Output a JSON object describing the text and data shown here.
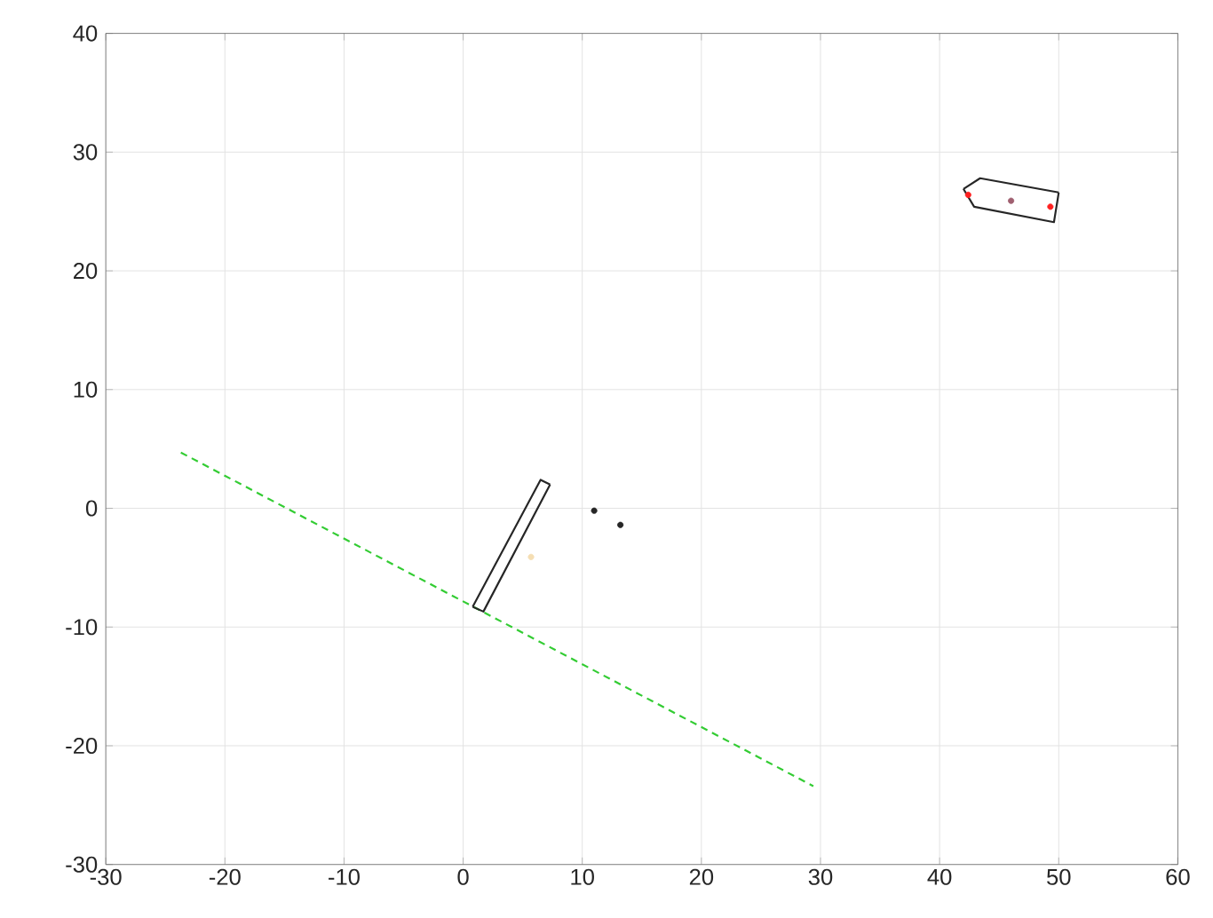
{
  "chart_data": {
    "type": "line",
    "xlim": [
      -30,
      60
    ],
    "ylim": [
      -30,
      40
    ],
    "xticks": [
      -30,
      -20,
      -10,
      0,
      10,
      20,
      30,
      40,
      50,
      60
    ],
    "yticks": [
      -30,
      -20,
      -10,
      0,
      10,
      20,
      30,
      40
    ],
    "grid": true,
    "series": [
      {
        "color": "#33cc33",
        "line_style": "dashed",
        "x": [
          -23.7,
          29.4
        ],
        "values": [
          4.7,
          -23.4
        ]
      },
      {
        "color": "#262626",
        "line_style": "solid",
        "x": [
          0.8,
          6.5,
          7.3
        ],
        "values": [
          -8.3,
          2.4,
          2.0
        ]
      },
      {
        "color": "#262626",
        "line_style": "solid",
        "x": [
          0.8,
          1.7,
          7.3
        ],
        "values": [
          -8.3,
          -8.7,
          2.0
        ]
      },
      {
        "color": "#262626",
        "line_style": "solid",
        "x": [
          42.0,
          43.4,
          50.0
        ],
        "values": [
          26.9,
          27.8,
          26.6
        ]
      },
      {
        "color": "#262626",
        "line_style": "solid",
        "x": [
          42.0,
          42.9,
          49.6,
          50.0
        ],
        "values": [
          26.9,
          25.4,
          24.1,
          26.6
        ]
      },
      {
        "type": "scatter",
        "color": "#262626",
        "marker": "circle",
        "x": [
          11.0,
          13.2
        ],
        "values": [
          -0.2,
          -1.4
        ]
      },
      {
        "type": "scatter",
        "color": "#ff2020",
        "marker": "circle",
        "x": [
          42.4,
          49.3
        ],
        "values": [
          26.4,
          25.4
        ]
      },
      {
        "type": "scatter",
        "color": "#a06070",
        "marker": "circle",
        "x": [
          46.0
        ],
        "values": [
          25.9
        ]
      },
      {
        "type": "scatter",
        "color": "#f5deb3",
        "marker": "circle",
        "x": [
          5.7
        ],
        "values": [
          -4.1
        ]
      }
    ]
  }
}
